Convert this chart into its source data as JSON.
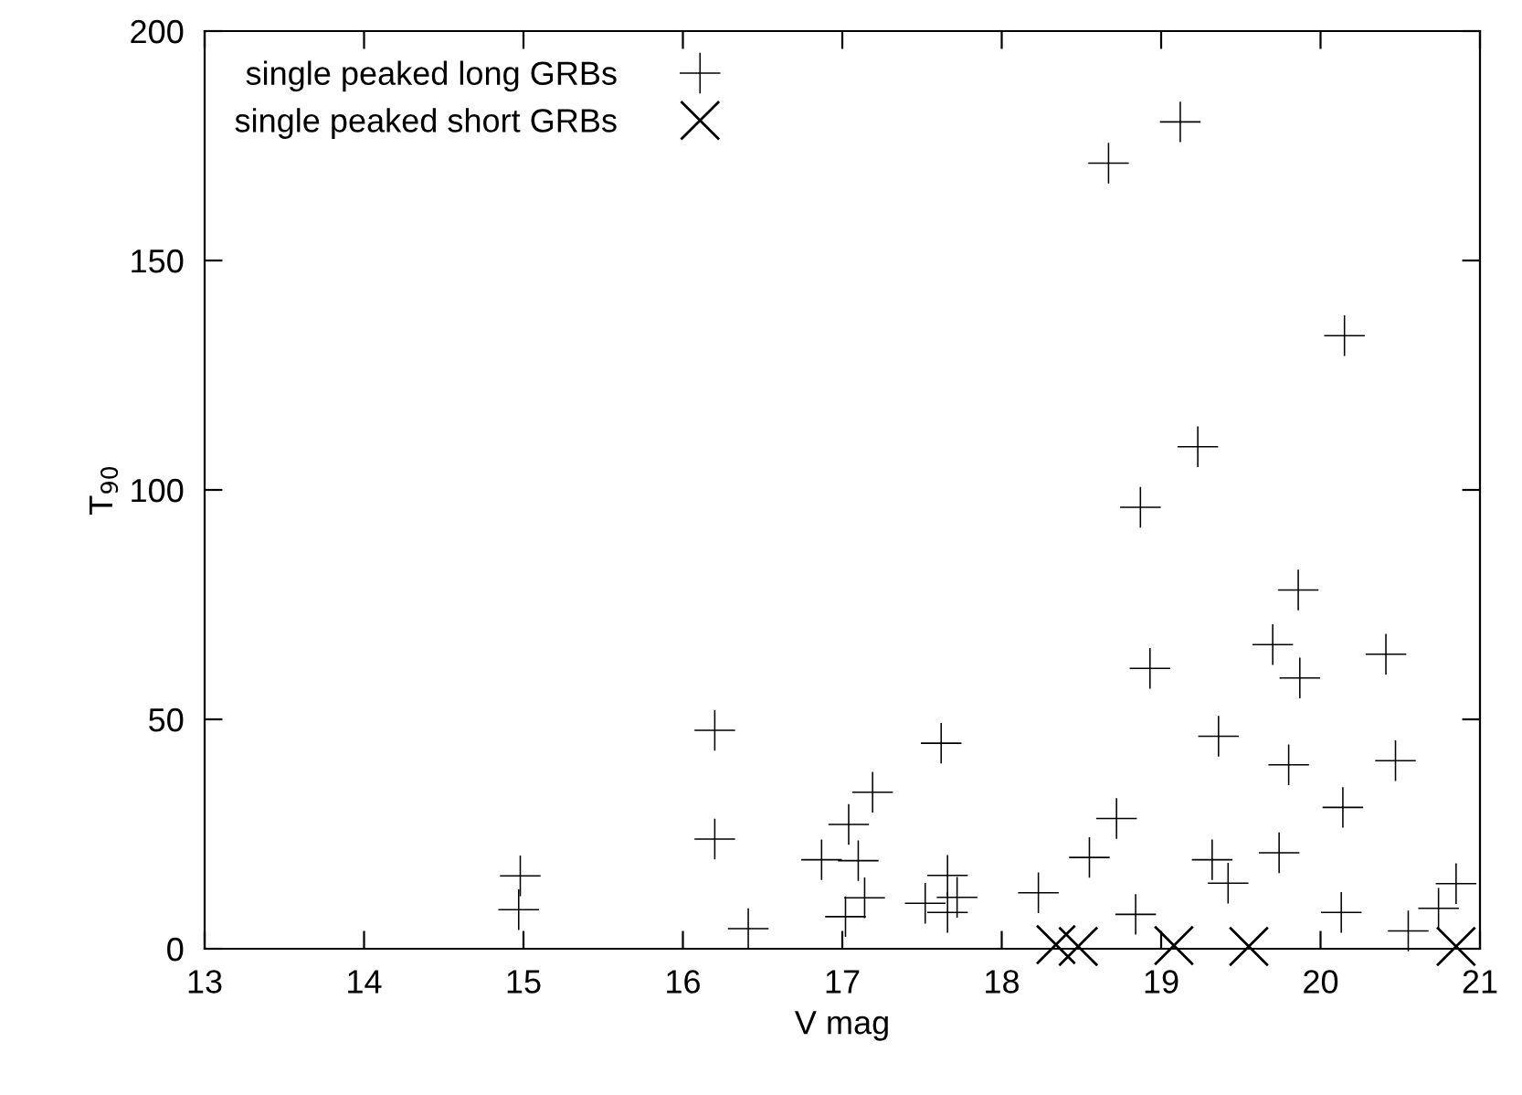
{
  "chart_data": {
    "type": "scatter",
    "xlabel": "V mag",
    "ylabel": "T$_{90}$",
    "xlim": [
      13,
      21
    ],
    "xticks": [
      13,
      14,
      15,
      16,
      17,
      18,
      19,
      20,
      21
    ],
    "ylim": [
      0,
      200
    ],
    "yticks": [
      0,
      50,
      100,
      150,
      200
    ],
    "grid": false,
    "legend": "top left",
    "series": [
      {
        "name": "single peaked long GRBs",
        "color": "#000000",
        "marker": "cross",
        "x": [
          14.98,
          14.97,
          16.2,
          16.2,
          16.41,
          17.62,
          17.19,
          17.04,
          16.87,
          17.1,
          17.14,
          17.02,
          17.52,
          17.66,
          17.72,
          17.66,
          18.87,
          19.86,
          19.7,
          19.87,
          20.41,
          18.93,
          19.36,
          19.8,
          20.47,
          20.14,
          18.72,
          18.55,
          19.32,
          19.42,
          19.74,
          18.23,
          18.84,
          20.13,
          20.55,
          20.74,
          20.85,
          18.67,
          19.12,
          20.15,
          19.23
        ],
        "values": [
          15.9,
          8.5,
          47.6,
          23.9,
          4.4,
          44.8,
          34.1,
          27.1,
          19.4,
          19.2,
          11.1,
          7.0,
          9.9,
          16.0,
          11.2,
          7.9,
          96.2,
          78.2,
          66.3,
          59.0,
          64.2,
          61.1,
          46.3,
          40.1,
          41.0,
          30.8,
          28.4,
          19.9,
          19.4,
          14.3,
          20.9,
          12.2,
          7.5,
          7.9,
          3.9,
          8.8,
          14.2,
          171.2,
          180.2,
          133.6,
          109.4
        ]
      },
      {
        "name": "single peaked short GRBs",
        "color": "#000000",
        "marker": "x",
        "x": [
          18.34,
          18.48,
          19.08,
          19.55,
          20.85
        ],
        "values": [
          0.9,
          0.5,
          0.7,
          0.5,
          0.5
        ]
      }
    ]
  }
}
